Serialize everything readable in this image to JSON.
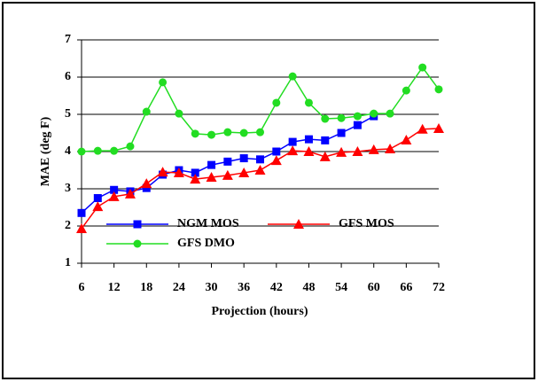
{
  "chart_data": {
    "type": "line",
    "x_label": "Projection (hours)",
    "y_label": "MAE (deg F)",
    "x": [
      6,
      9,
      12,
      15,
      18,
      21,
      24,
      27,
      30,
      33,
      36,
      39,
      42,
      45,
      48,
      51,
      54,
      57,
      60,
      63,
      66,
      69,
      72
    ],
    "series": [
      {
        "name": "NGM MOS",
        "color": "#0000ff",
        "marker": "square",
        "values": [
          2.35,
          2.75,
          2.97,
          2.93,
          3.02,
          3.38,
          3.5,
          3.43,
          3.64,
          3.73,
          3.82,
          3.79,
          4.0,
          4.26,
          4.33,
          4.3,
          4.5,
          4.71,
          4.95,
          null,
          null,
          null,
          null
        ]
      },
      {
        "name": "GFS MOS",
        "color": "#ff0000",
        "marker": "triangle",
        "values": [
          1.93,
          2.52,
          2.79,
          2.86,
          3.14,
          3.45,
          3.43,
          3.26,
          3.31,
          3.36,
          3.43,
          3.5,
          3.76,
          4.02,
          4.0,
          3.86,
          3.98,
          4.0,
          4.05,
          4.07,
          4.31,
          4.6,
          4.62
        ]
      },
      {
        "name": "GFS DMO",
        "color": "#22dd22",
        "marker": "circle",
        "values": [
          4.0,
          4.02,
          4.02,
          4.14,
          5.07,
          5.86,
          5.02,
          4.48,
          4.45,
          4.52,
          4.5,
          4.52,
          5.31,
          6.02,
          5.31,
          4.88,
          4.9,
          4.95,
          5.02,
          5.02,
          5.64,
          6.26,
          5.67
        ]
      }
    ],
    "xlim": [
      6,
      72
    ],
    "xticks": [
      6,
      12,
      18,
      24,
      30,
      36,
      42,
      48,
      54,
      60,
      66,
      72
    ],
    "ylim": [
      1,
      7
    ],
    "yticks": [
      1,
      2,
      3,
      4,
      5,
      6,
      7
    ],
    "grid": true
  }
}
